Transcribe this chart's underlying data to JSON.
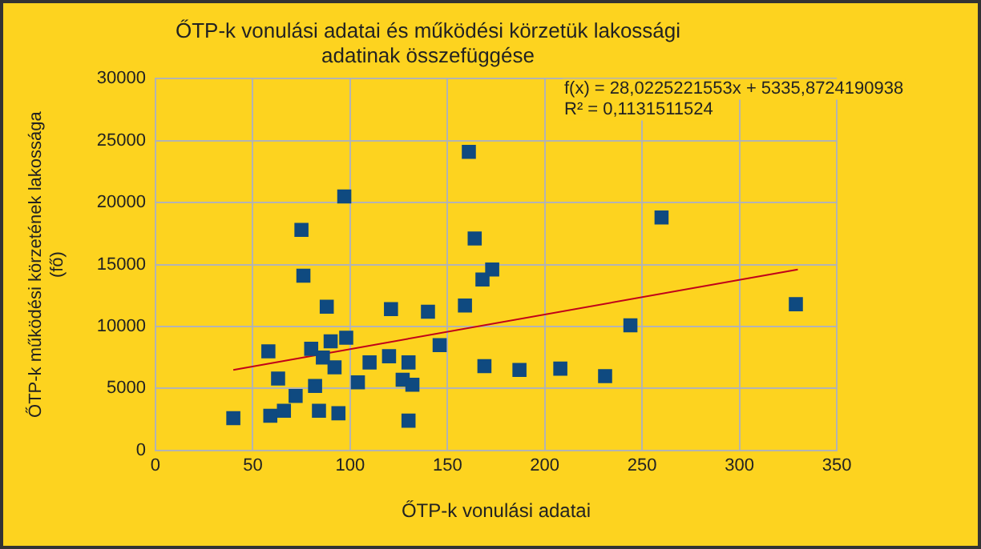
{
  "chart_data": {
    "type": "scatter",
    "title": "ŐTP-k vonulási adatai és működési körzetük lakossági\nadatinak összefüggése",
    "xlabel": "ŐTP-k vonulási adatai",
    "ylabel": "ŐTP-k működési körzetének lakossága\n(fő)",
    "series": [
      {
        "color": "#0f4a80",
        "marker": "square",
        "x": [
          40,
          58,
          63,
          59,
          66,
          72,
          75,
          76,
          82,
          80,
          84,
          88,
          90,
          86,
          92,
          94,
          97,
          98,
          104,
          110,
          121,
          120,
          130,
          127,
          132,
          130,
          140,
          146,
          159,
          161,
          164,
          169,
          168,
          173,
          187,
          208,
          231,
          244,
          260,
          329
        ],
        "values": [
          2600,
          8000,
          5800,
          2800,
          3200,
          4400,
          17800,
          14100,
          5200,
          8200,
          3200,
          11600,
          8800,
          7500,
          6700,
          3000,
          20500,
          9100,
          5500,
          7100,
          11400,
          7600,
          7100,
          5700,
          5300,
          2400,
          11200,
          8500,
          11700,
          24100,
          17100,
          6800,
          13800,
          14600,
          6500,
          6600,
          6000,
          10100,
          18800,
          11800
        ]
      },
      {
        "type": "line",
        "color": "#c0001a",
        "marker": "none",
        "x": [
          40,
          330
        ],
        "values": [
          6500,
          14600
        ]
      }
    ],
    "annotations": [
      "f(x) = 28,0225221553x + 5335,8724190938",
      "R² = 0,1131511524"
    ],
    "xlim": [
      0,
      350
    ],
    "xticks": [
      0,
      50,
      100,
      150,
      200,
      250,
      300,
      350
    ],
    "ylim": [
      0,
      30000
    ],
    "yticks": [
      0,
      5000,
      10000,
      15000,
      20000,
      25000,
      30000
    ],
    "grid": true,
    "legend": false
  }
}
